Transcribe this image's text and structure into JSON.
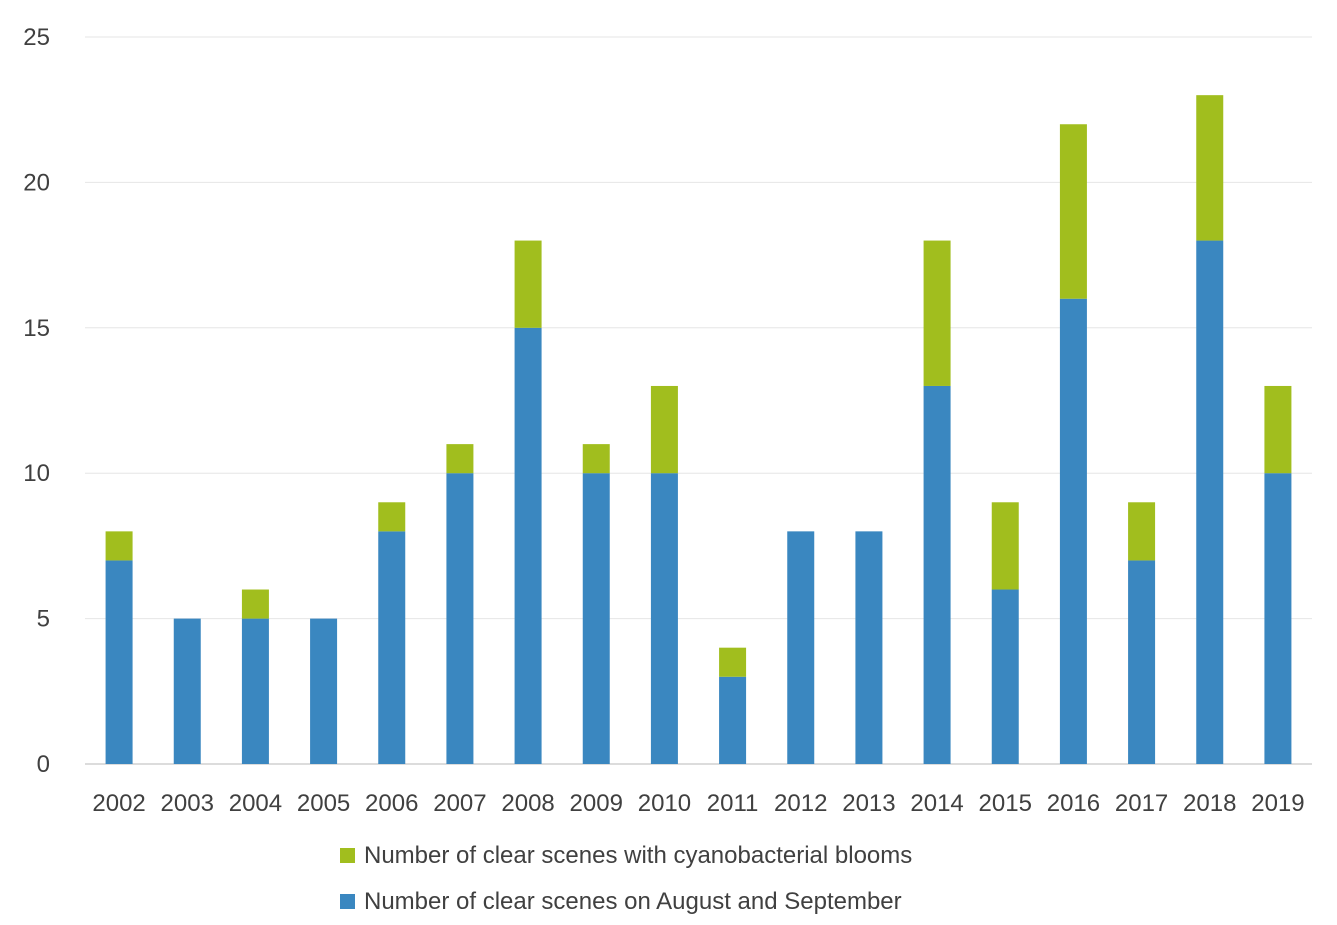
{
  "chart_data": {
    "type": "bar",
    "stacked": true,
    "title": "",
    "xlabel": "",
    "ylabel": "",
    "ylim": [
      0,
      25
    ],
    "yticks": [
      0,
      5,
      10,
      15,
      20,
      25
    ],
    "grid": true,
    "legend_position": "bottom",
    "categories": [
      "2002",
      "2003",
      "2004",
      "2005",
      "2006",
      "2007",
      "2008",
      "2009",
      "2010",
      "2011",
      "2012",
      "2013",
      "2014",
      "2015",
      "2016",
      "2017",
      "2018",
      "2019"
    ],
    "series": [
      {
        "name": "Number of clear scenes on August and September",
        "color": "#3a87c0",
        "values": [
          7,
          5,
          5,
          5,
          8,
          10,
          15,
          10,
          10,
          3,
          8,
          8,
          13,
          6,
          16,
          7,
          18,
          10
        ]
      },
      {
        "name": "Number of clear scenes with cyanobacterial blooms",
        "color": "#a1be1e",
        "values": [
          1,
          0,
          1,
          0,
          1,
          1,
          3,
          1,
          3,
          1,
          0,
          0,
          5,
          3,
          6,
          2,
          5,
          3
        ]
      }
    ],
    "legend_order": [
      1,
      0
    ]
  }
}
